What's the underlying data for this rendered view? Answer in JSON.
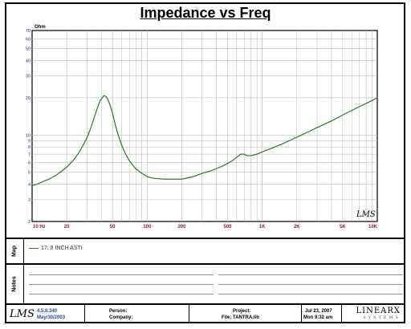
{
  "title": "Impedance vs Freq",
  "chart_data": {
    "type": "line",
    "title": "Impedance vs Freq",
    "ylabel": "Ohm",
    "xscale": "log",
    "yscale": "log",
    "xlim": [
      10,
      10000
    ],
    "ylim": [
      2,
      70
    ],
    "grid": true,
    "x_tick_labels": [
      {
        "value": 10,
        "label": "10 Hz"
      },
      {
        "value": 20,
        "label": "20"
      },
      {
        "value": 50,
        "label": "50"
      },
      {
        "value": 100,
        "label": "100"
      },
      {
        "value": 200,
        "label": "200"
      },
      {
        "value": 500,
        "label": "500"
      },
      {
        "value": 1000,
        "label": "1K"
      },
      {
        "value": 2000,
        "label": "2K"
      },
      {
        "value": 5000,
        "label": "5K"
      },
      {
        "value": 10000,
        "label": "10K"
      }
    ],
    "y_tick_labels": [
      {
        "value": 2,
        "label": "2"
      },
      {
        "value": 3,
        "label": "3"
      },
      {
        "value": 4,
        "label": "4"
      },
      {
        "value": 5,
        "label": "5"
      },
      {
        "value": 6,
        "label": "6"
      },
      {
        "value": 7,
        "label": "7"
      },
      {
        "value": 8,
        "label": "8"
      },
      {
        "value": 9,
        "label": "9"
      },
      {
        "value": 10,
        "label": "10"
      },
      {
        "value": 20,
        "label": "20"
      },
      {
        "value": 30,
        "label": "30"
      },
      {
        "value": 40,
        "label": "40"
      },
      {
        "value": 50,
        "label": "50"
      },
      {
        "value": 60,
        "label": "60"
      },
      {
        "value": 70,
        "label": "70"
      }
    ],
    "series": [
      {
        "name": "17: 8 INCH ASTI",
        "color": "#2a7a2a",
        "x": [
          10,
          11,
          12,
          14,
          16,
          18,
          20,
          23,
          26,
          30,
          33,
          36,
          39,
          42,
          44,
          46,
          48,
          50,
          53,
          56,
          60,
          65,
          70,
          80,
          90,
          100,
          110,
          120,
          140,
          160,
          180,
          200,
          250,
          300,
          350,
          400,
          450,
          500,
          550,
          600,
          650,
          700,
          720,
          750,
          800,
          850,
          900,
          1000,
          1200,
          1500,
          2000,
          2500,
          3000,
          4000,
          5000,
          6000,
          7000,
          8000,
          9000,
          10000
        ],
        "y": [
          3.9,
          4.0,
          4.15,
          4.4,
          4.7,
          5.1,
          5.5,
          6.3,
          7.4,
          9.5,
          12,
          15.5,
          19,
          20.8,
          20.5,
          19,
          17,
          15,
          12,
          10,
          8.3,
          7,
          6.2,
          5.3,
          4.9,
          4.6,
          4.5,
          4.45,
          4.4,
          4.4,
          4.4,
          4.4,
          4.6,
          4.9,
          5.1,
          5.35,
          5.6,
          5.9,
          6.2,
          6.6,
          7.0,
          7.0,
          6.85,
          6.8,
          6.8,
          6.9,
          7.0,
          7.3,
          7.8,
          8.5,
          9.6,
          10.6,
          11.5,
          13,
          14.5,
          15.8,
          17,
          18,
          19,
          20
        ]
      }
    ]
  },
  "watermark": "LMS",
  "map": {
    "label": "Map",
    "legend_text": "17: 8 INCH ASTI"
  },
  "notes": {
    "label": "Notes"
  },
  "footer": {
    "logo": "LMS",
    "version": "4.5.0.340",
    "version_date": "May/30/2003",
    "person_label": "Person:",
    "company_label": "Company:",
    "project_label": "Project:",
    "file_label": "File: TANTRA.lib",
    "date": "Jul 23, 2007",
    "time": "Mon 9:32 am",
    "brand": "LINEARX",
    "brand_sub": "SYSTEMS"
  }
}
